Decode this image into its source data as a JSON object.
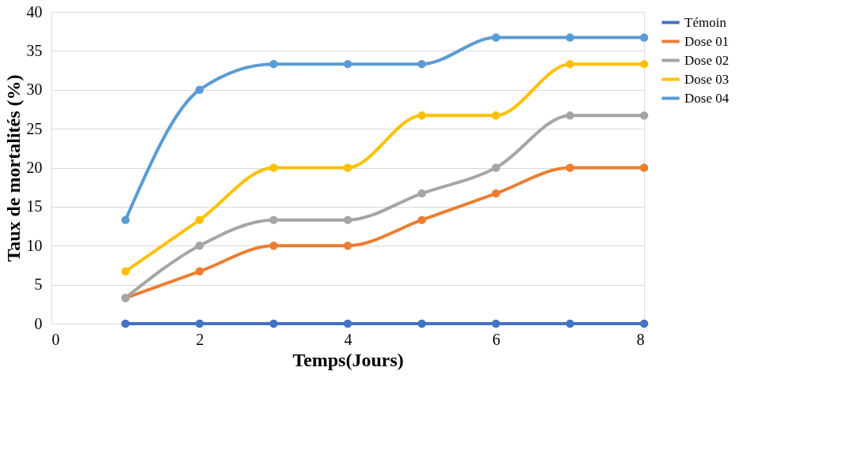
{
  "chart_data": {
    "type": "line",
    "xlabel": "Temps(Jours)",
    "ylabel": "Taux de mortalités (%)",
    "x": [
      1,
      2,
      3,
      4,
      5,
      6,
      7,
      8
    ],
    "series": [
      {
        "name": "Témoin",
        "color": "#4472c4",
        "values": [
          0,
          0,
          0,
          0,
          0,
          0,
          0,
          0
        ]
      },
      {
        "name": "Dose 01",
        "color": "#ed7d31",
        "values": [
          3.3,
          6.7,
          10,
          10,
          13.3,
          16.7,
          20,
          20
        ]
      },
      {
        "name": "Dose 02",
        "color": "#a5a5a5",
        "values": [
          3.3,
          10,
          13.3,
          13.3,
          16.7,
          20,
          26.7,
          26.7
        ]
      },
      {
        "name": "Dose 03",
        "color": "#ffc000",
        "values": [
          6.7,
          13.3,
          20,
          20,
          26.7,
          26.7,
          33.3,
          33.3
        ]
      },
      {
        "name": "Dose 04",
        "color": "#5b9bd5",
        "values": [
          13.3,
          30,
          33.3,
          33.3,
          33.3,
          36.7,
          36.7,
          36.7
        ]
      }
    ],
    "xlim": [
      0,
      8
    ],
    "xticks": [
      0,
      2,
      4,
      6,
      8
    ],
    "ylim": [
      0,
      40
    ],
    "yticks": [
      0,
      5,
      10,
      15,
      20,
      25,
      30,
      35,
      40
    ],
    "grid": "y",
    "legend": "right",
    "marker": "circle",
    "line_style": "solid"
  }
}
